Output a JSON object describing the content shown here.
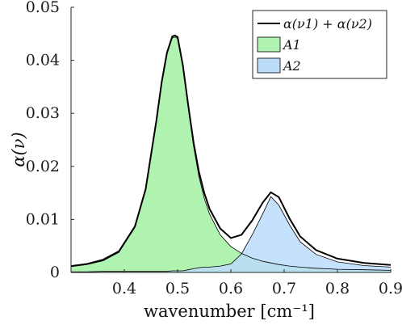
{
  "chart_data": {
    "type": "area",
    "xlabel": "wavenumber [cm⁻¹]",
    "ylabel": "α(ν)",
    "xlim": [
      0.3,
      0.9
    ],
    "ylim": [
      0,
      0.05
    ],
    "xticks": [
      0.4,
      0.5,
      0.6,
      0.7,
      0.8,
      0.9
    ],
    "xtick_labels": [
      "0.4",
      "0.5",
      "0.6",
      "0.7",
      "0.8",
      "0.9"
    ],
    "yticks": [
      0,
      0.01,
      0.02,
      0.03,
      0.04,
      0.05
    ],
    "ytick_labels": [
      "0",
      "0.01",
      "0.02",
      "0.03",
      "0.04",
      "0.05"
    ],
    "grid": false,
    "legend_position": "top-right",
    "series": [
      {
        "name": "α(ν1) + α(ν2)",
        "kind": "line",
        "color": "#000000",
        "x": [
          0.3,
          0.33,
          0.36,
          0.39,
          0.42,
          0.44,
          0.46,
          0.47,
          0.48,
          0.49,
          0.495,
          0.5,
          0.51,
          0.52,
          0.53,
          0.54,
          0.55,
          0.56,
          0.58,
          0.6,
          0.62,
          0.64,
          0.66,
          0.675,
          0.69,
          0.71,
          0.73,
          0.76,
          0.8,
          0.85,
          0.9
        ],
        "values": [
          0.0012,
          0.0016,
          0.0024,
          0.004,
          0.0087,
          0.0157,
          0.0285,
          0.0358,
          0.0414,
          0.0445,
          0.0447,
          0.0444,
          0.039,
          0.0315,
          0.0245,
          0.019,
          0.015,
          0.012,
          0.0083,
          0.0065,
          0.0071,
          0.0098,
          0.0132,
          0.0151,
          0.0142,
          0.0102,
          0.0068,
          0.0042,
          0.0026,
          0.0018,
          0.0014
        ]
      },
      {
        "name": "A1",
        "kind": "area",
        "color": "#b0f2b0",
        "x": [
          0.3,
          0.33,
          0.36,
          0.39,
          0.42,
          0.44,
          0.46,
          0.47,
          0.48,
          0.49,
          0.495,
          0.5,
          0.51,
          0.52,
          0.53,
          0.54,
          0.55,
          0.56,
          0.58,
          0.6,
          0.62,
          0.64,
          0.66,
          0.675,
          0.69,
          0.71,
          0.73,
          0.76,
          0.8,
          0.85,
          0.9
        ],
        "values": [
          0.0011,
          0.0015,
          0.0022,
          0.0038,
          0.0085,
          0.0155,
          0.0283,
          0.0356,
          0.0412,
          0.0442,
          0.0444,
          0.0441,
          0.0387,
          0.031,
          0.0238,
          0.0181,
          0.014,
          0.011,
          0.0071,
          0.0049,
          0.0036,
          0.0027,
          0.0021,
          0.0018,
          0.0015,
          0.0012,
          0.001,
          0.0008,
          0.0006,
          0.0005,
          0.0004
        ]
      },
      {
        "name": "A2",
        "kind": "area",
        "color": "#bcdcfa",
        "x": [
          0.3,
          0.33,
          0.36,
          0.39,
          0.42,
          0.44,
          0.46,
          0.47,
          0.48,
          0.49,
          0.495,
          0.5,
          0.51,
          0.52,
          0.53,
          0.54,
          0.55,
          0.56,
          0.58,
          0.6,
          0.62,
          0.64,
          0.66,
          0.675,
          0.69,
          0.71,
          0.73,
          0.76,
          0.8,
          0.85,
          0.9
        ],
        "values": [
          0.0001,
          0.0001,
          0.0002,
          0.0002,
          0.0002,
          0.0002,
          0.0002,
          0.0002,
          0.0002,
          0.0003,
          0.0003,
          0.0003,
          0.0003,
          0.0005,
          0.0007,
          0.0009,
          0.001,
          0.001,
          0.0012,
          0.0016,
          0.0035,
          0.0071,
          0.0111,
          0.0143,
          0.0127,
          0.009,
          0.0058,
          0.0034,
          0.002,
          0.0013,
          0.001
        ]
      }
    ]
  }
}
